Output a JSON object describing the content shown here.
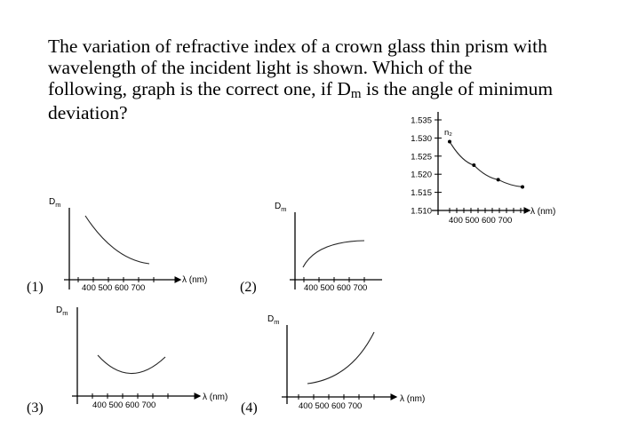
{
  "question": {
    "line1": "The variation of refractive index of a crown glass thin prism with",
    "line2": "wavelength of the incident light is shown. Which of the",
    "line3a": "following, graph is the correct one, if D",
    "line3sub": "m",
    "line3b": " is the angle of minimum",
    "line4": "deviation?"
  },
  "ref_chart": {
    "chart_data": {
      "type": "line",
      "x": [
        400,
        500,
        600,
        700
      ],
      "y": [
        1.529,
        1.5225,
        1.5185,
        1.5165
      ],
      "curve_label": "n₂",
      "ytick_labels": [
        "1.535",
        "1.530",
        "1.525",
        "1.520",
        "1.515",
        "1.510"
      ],
      "xtick_labels": "400 500 600 700",
      "xlabel": "λ (nm)",
      "ylim": [
        1.51,
        1.535
      ],
      "xlim": [
        400,
        700
      ]
    }
  },
  "options": [
    {
      "number": "(1)",
      "ylabel_main": "D",
      "ylabel_sub": "m",
      "xtick_labels": "400 500 600 700",
      "xlabel": "λ (nm)",
      "shape": "decreasing"
    },
    {
      "number": "(2)",
      "ylabel_main": "D",
      "ylabel_sub": "m",
      "xtick_labels": "400 500 600 700",
      "xlabel": "",
      "shape": "increasing-saturating"
    },
    {
      "number": "(3)",
      "ylabel_main": "D",
      "ylabel_sub": "m",
      "xtick_labels": "400 500 600 700",
      "xlabel": "λ (nm)",
      "shape": "u-shaped"
    },
    {
      "number": "(4)",
      "ylabel_main": "D",
      "ylabel_sub": "m",
      "xtick_labels": "400 500 600 700",
      "xlabel": "λ (nm)",
      "shape": "increasing"
    }
  ]
}
